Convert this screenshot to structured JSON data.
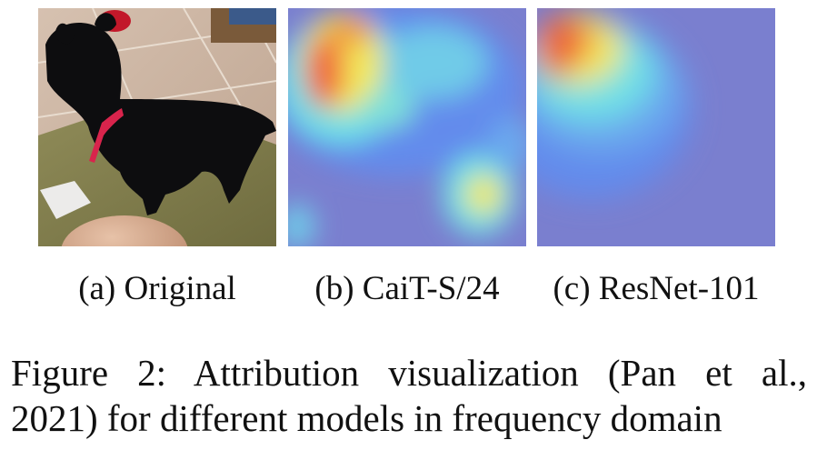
{
  "figure": {
    "panels": [
      {
        "id": "a",
        "caption": "(a) Original"
      },
      {
        "id": "b",
        "caption": "(b) CaiT-S/24"
      },
      {
        "id": "c",
        "caption": "(c) ResNet-101"
      }
    ],
    "caption_line1": "Figure 2:  Attribution visualization (Pan et al.,",
    "caption_line2": "2021) for different models in frequency domain"
  },
  "colors": {
    "heatmap_background": "#7a7fcf",
    "heatmap_low": "#5f8df0",
    "heatmap_mid": "#6fe0e6",
    "heatmap_warm": "#f3e85a",
    "heatmap_hot": "#f06a3a",
    "dog_fur": "#0d0d0f",
    "collar": "#d8244c",
    "floor_tile": "#c9b3a3",
    "rug": "#8c8a55"
  }
}
